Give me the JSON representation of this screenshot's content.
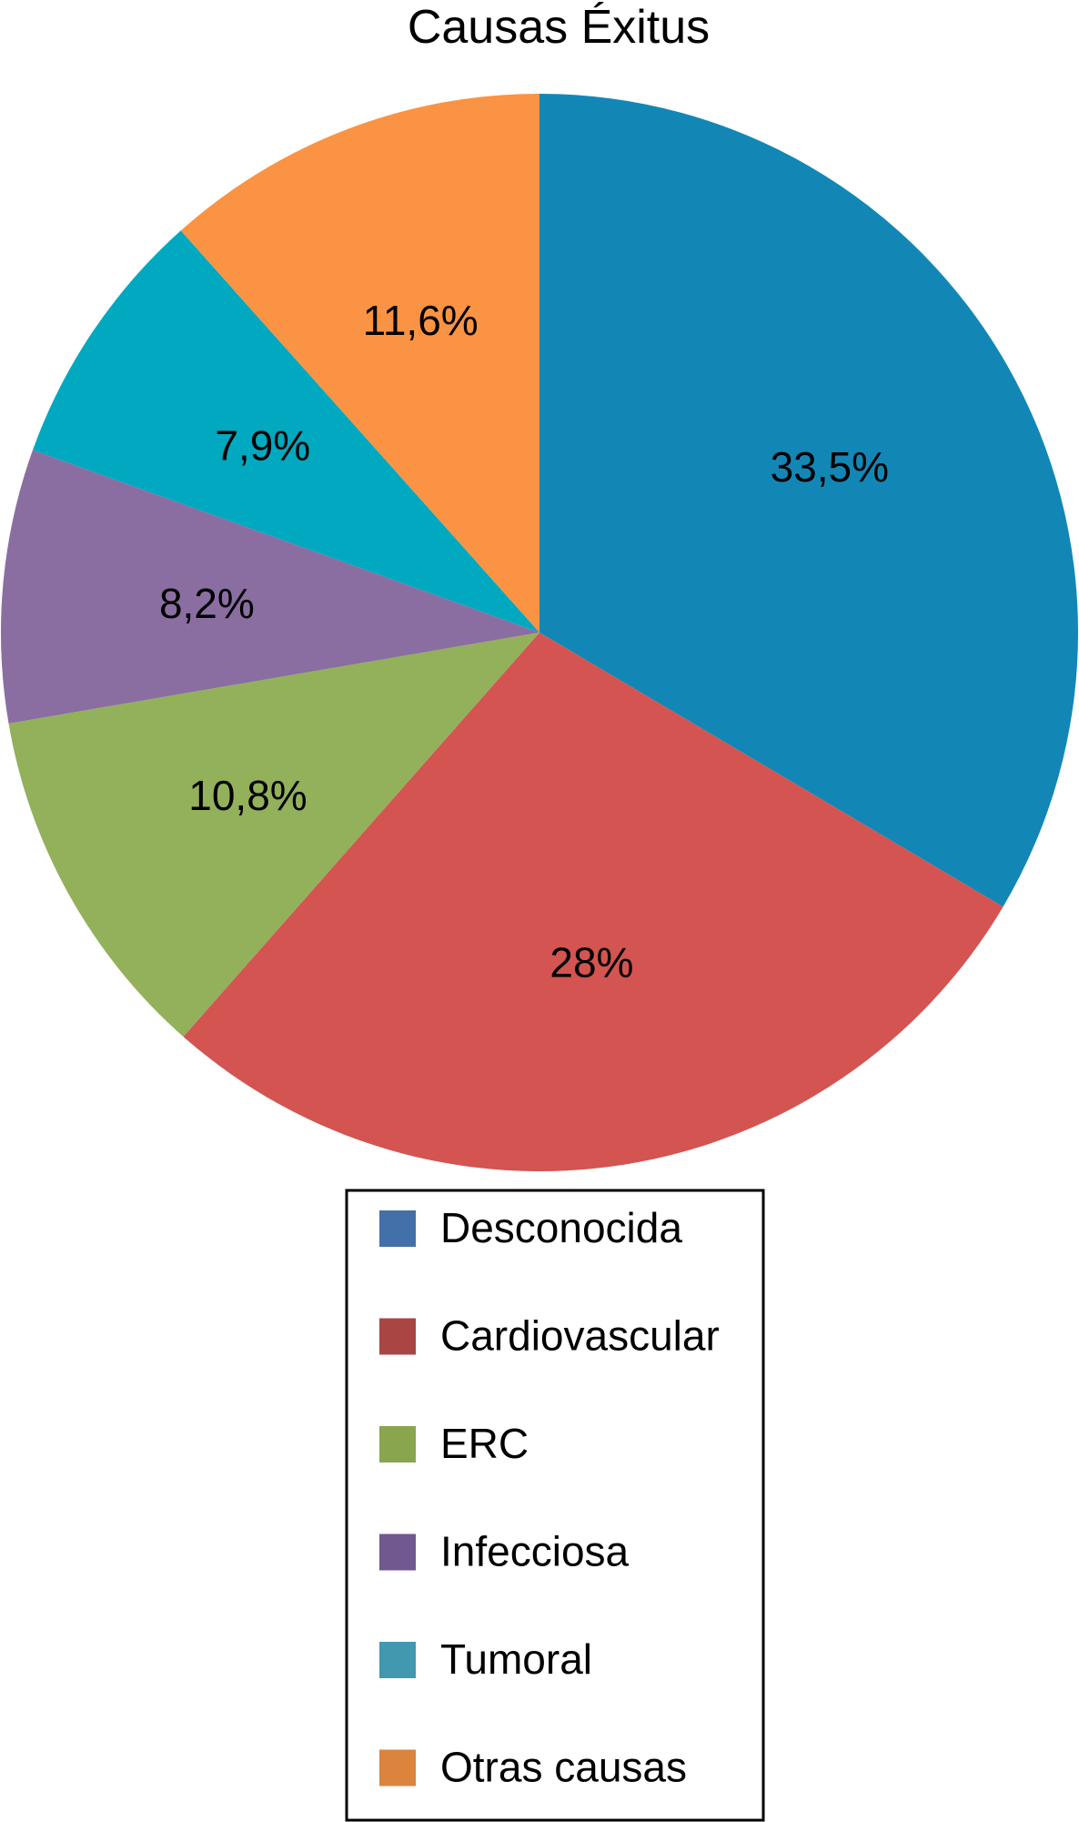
{
  "chart_data": {
    "type": "pie",
    "title": "Causas Éxitus",
    "slices": [
      {
        "label": "Desconocida",
        "value": 33.5,
        "value_label": "33,5%",
        "color": "#1287b6",
        "legend_color": "#4470a9"
      },
      {
        "label": "Cardiovascular",
        "value": 28.0,
        "value_label": "28%",
        "color": "#d35450",
        "legend_color": "#a94644"
      },
      {
        "label": "ERC",
        "value": 10.8,
        "value_label": "10,8%",
        "color": "#93b05b",
        "legend_color": "#89a54e"
      },
      {
        "label": "Infecciosa",
        "value": 8.2,
        "value_label": "8,2%",
        "color": "#8a6ea1",
        "legend_color": "#71588f"
      },
      {
        "label": "Tumoral",
        "value": 7.9,
        "value_label": "7,9%",
        "color": "#00a8c0",
        "legend_color": "#4198af"
      },
      {
        "label": "Otras causas",
        "value": 11.6,
        "value_label": "11,6%",
        "color": "#fa9343",
        "legend_color": "#db843d"
      }
    ],
    "start_angle_deg": 0,
    "direction": "clockwise",
    "legend_position": "bottom"
  }
}
